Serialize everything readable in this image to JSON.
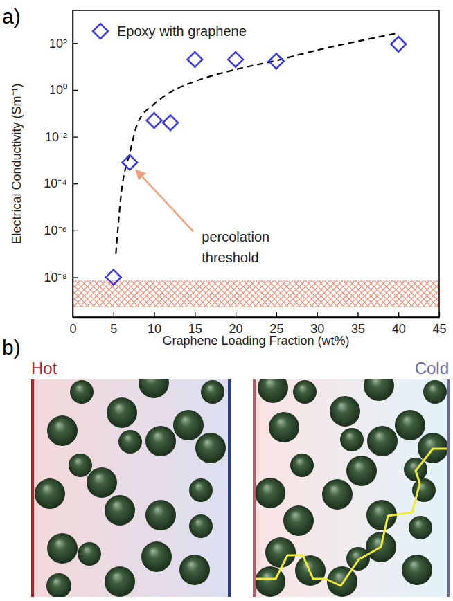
{
  "chart_data": {
    "type": "scatter",
    "panel_label": "a)",
    "x_label": "Graphene Loading Fraction (wt%)",
    "y_label": "Electrical Conductivity (Sm⁻¹)",
    "log": "y",
    "xlim": [
      0,
      45
    ],
    "xticks": [
      0,
      5,
      10,
      15,
      20,
      25,
      30,
      35,
      40,
      45
    ],
    "ylim": [
      2e-10,
      2500
    ],
    "yticks": [
      {
        "value": 1e-08,
        "label": "10⁻⁸"
      },
      {
        "value": 1e-06,
        "label": "10⁻⁶"
      },
      {
        "value": 0.0001,
        "label": "10⁻⁴"
      },
      {
        "value": 0.01,
        "label": "10⁻²"
      },
      {
        "value": 1,
        "label": "10⁰"
      },
      {
        "value": 100,
        "label": "10²"
      }
    ],
    "legend": "upper left",
    "series": [
      {
        "name": "Epoxy with graphene",
        "type": "scatter",
        "marker": "diamond",
        "color": "#3c3ce0",
        "x": [
          5,
          7,
          10,
          12,
          15,
          20,
          25,
          40
        ],
        "values": [
          1e-08,
          0.0008,
          0.05,
          0.04,
          20,
          20,
          17,
          90
        ]
      },
      {
        "type": "line",
        "line_style": "dashed",
        "color": "#000000",
        "x": [
          5.3,
          6,
          7,
          8,
          10,
          12,
          15,
          20,
          25,
          30,
          35,
          40
        ],
        "values": [
          1e-07,
          5e-05,
          0.002,
          0.04,
          0.25,
          0.8,
          2.3,
          7.5,
          18,
          50,
          120,
          270
        ]
      }
    ],
    "shaded_range": [
      5.4e-10,
      7e-09
    ],
    "annotation": {
      "text": "percolation threshold",
      "x": 7,
      "y": 0.0008
    }
  },
  "diagram": {
    "label": "b)",
    "hot_label": "Hot",
    "cold_label": "Cold"
  }
}
